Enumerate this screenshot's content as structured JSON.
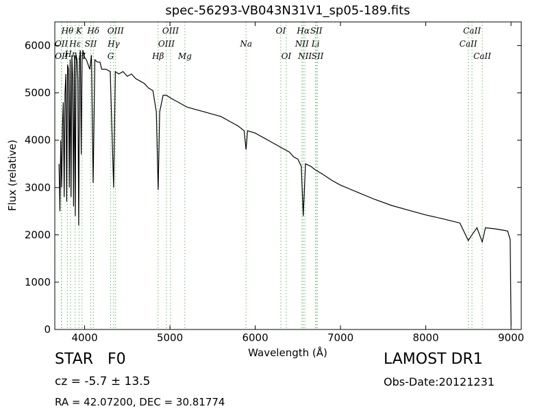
{
  "header": {
    "title": "spec-56293-VB043N31V1_sp05-189.fits"
  },
  "info": {
    "star_type": "STAR   F0",
    "cz": "cz = -5.7 ± 13.5",
    "radec": "RA = 42.07200, DEC = 30.81774",
    "survey": "LAMOST DR1",
    "obs_date": "Obs-Date:20121231"
  },
  "colors": {
    "spectrum": "#000000",
    "line_marker": "#5cb85c",
    "axes": "#000000"
  },
  "chart_data": {
    "type": "line",
    "title": "spec-56293-VB043N31V1_sp05-189.fits",
    "xlabel": "Wavelength (Å)",
    "ylabel": "Flux (relative)",
    "xlim": [
      3650,
      9120
    ],
    "ylim": [
      0,
      6500
    ],
    "xticks": [
      4000,
      5000,
      6000,
      7000,
      8000,
      9000
    ],
    "yticks": [
      0,
      1000,
      2000,
      3000,
      4000,
      5000,
      6000
    ],
    "grid": false,
    "series": [
      {
        "x": [
          3700,
          3710,
          3720,
          3730,
          3740,
          3750,
          3760,
          3770,
          3780,
          3790,
          3800,
          3810,
          3820,
          3830,
          3840,
          3850,
          3860,
          3870,
          3880,
          3890,
          3900,
          3910,
          3920,
          3930,
          3940,
          3950,
          3960,
          3970,
          3980,
          3990,
          4000,
          4020,
          4040,
          4060,
          4080,
          4100,
          4120,
          4150,
          4180,
          4200,
          4250,
          4300,
          4340,
          4360,
          4400,
          4450,
          4500,
          4550,
          4600,
          4650,
          4700,
          4750,
          4800,
          4840,
          4862,
          4880,
          4920,
          4960,
          5000,
          5050,
          5100,
          5150,
          5200,
          5300,
          5400,
          5500,
          5600,
          5700,
          5800,
          5870,
          5893,
          5910,
          6000,
          6100,
          6200,
          6300,
          6400,
          6450,
          6500,
          6540,
          6563,
          6590,
          6650,
          6700,
          6800,
          6900,
          7000,
          7200,
          7400,
          7600,
          7800,
          8000,
          8200,
          8400,
          8498,
          8542,
          8600,
          8662,
          8700,
          8800,
          8900,
          8960,
          8990,
          9000
        ],
        "y": [
          3500,
          2500,
          4000,
          3000,
          4300,
          4800,
          2800,
          5000,
          5400,
          2700,
          5600,
          5500,
          3000,
          5700,
          2800,
          5800,
          5300,
          2600,
          5800,
          2400,
          5800,
          5700,
          5300,
          2200,
          5700,
          5900,
          3700,
          5700,
          5900,
          5800,
          5750,
          5700,
          5600,
          5500,
          5800,
          3100,
          5700,
          5650,
          5650,
          5500,
          5500,
          5450,
          3000,
          5450,
          5400,
          5450,
          5350,
          5400,
          5300,
          5250,
          5200,
          5100,
          5050,
          4600,
          2950,
          4600,
          4950,
          4950,
          4900,
          4850,
          4800,
          4750,
          4700,
          4650,
          4600,
          4550,
          4500,
          4400,
          4300,
          4200,
          3800,
          4200,
          4150,
          4050,
          3950,
          3850,
          3750,
          3650,
          3600,
          3450,
          2400,
          3500,
          3450,
          3380,
          3270,
          3150,
          3050,
          2900,
          2750,
          2620,
          2520,
          2420,
          2340,
          2250,
          1880,
          2000,
          2150,
          1850,
          2150,
          2130,
          2100,
          2080,
          1900,
          80
        ]
      }
    ],
    "spectral_lines": [
      {
        "label": "Hθ",
        "x": 3798,
        "row": 1
      },
      {
        "label": "K",
        "x": 3934,
        "row": 1
      },
      {
        "label": "Hδ",
        "x": 4102,
        "row": 1
      },
      {
        "label": "OIII",
        "x": 4363,
        "row": 1
      },
      {
        "label": "OIII",
        "x": 5007,
        "row": 1
      },
      {
        "label": "OI",
        "x": 6300,
        "row": 1
      },
      {
        "label": "Hα",
        "x": 6563,
        "row": 1
      },
      {
        "label": "SII",
        "x": 6716,
        "row": 1
      },
      {
        "label": "CaII",
        "x": 8542,
        "row": 1
      },
      {
        "label": "OII",
        "x": 3727,
        "row": 2
      },
      {
        "label": "Hε",
        "x": 3889,
        "row": 2
      },
      {
        "label": "SII",
        "x": 4072,
        "row": 2
      },
      {
        "label": "Hγ",
        "x": 4340,
        "row": 2
      },
      {
        "label": "OIII",
        "x": 4959,
        "row": 2
      },
      {
        "label": "Na",
        "x": 5893,
        "row": 2
      },
      {
        "label": "NII",
        "x": 6548,
        "row": 2
      },
      {
        "label": "Li",
        "x": 6708,
        "row": 2
      },
      {
        "label": "CaII",
        "x": 8498,
        "row": 2
      },
      {
        "label": "Hη",
        "x": 3835,
        "row": 3
      },
      {
        "label": "OII",
        "x": 3729,
        "row": 4
      },
      {
        "label": "H",
        "x": 3970,
        "row": 4
      },
      {
        "label": "G",
        "x": 4305,
        "row": 4
      },
      {
        "label": "Hβ",
        "x": 4861,
        "row": 4
      },
      {
        "label": "Mg",
        "x": 5175,
        "row": 4
      },
      {
        "label": "OI",
        "x": 6364,
        "row": 4
      },
      {
        "label": "NII",
        "x": 6583,
        "row": 4
      },
      {
        "label": "SII",
        "x": 6731,
        "row": 4
      },
      {
        "label": "CaII",
        "x": 8662,
        "row": 4
      }
    ]
  }
}
